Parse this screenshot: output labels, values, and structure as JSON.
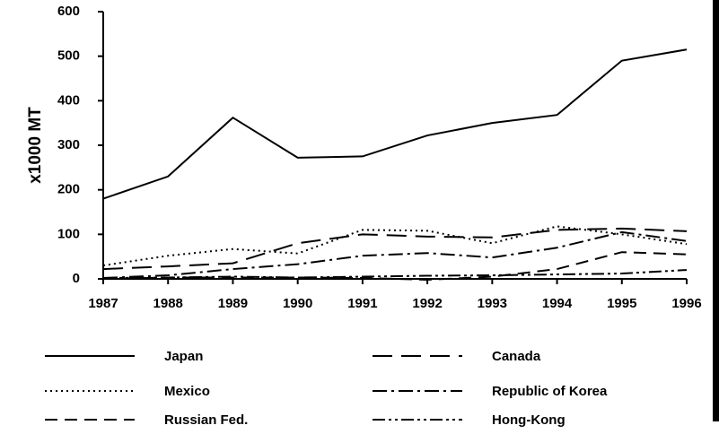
{
  "chart_data": {
    "type": "line",
    "y_label": "x1000 MT",
    "categories": [
      "1987",
      "1988",
      "1989",
      "1990",
      "1991",
      "1992",
      "1993",
      "1994",
      "1995",
      "1996"
    ],
    "series": [
      {
        "name": "Japan",
        "color": "#000000",
        "line_style": "solid",
        "values": [
          180,
          230,
          362,
          272,
          275,
          322,
          350,
          368,
          490,
          515
        ]
      },
      {
        "name": "Canada",
        "color": "#000000",
        "line_style": "long-dash",
        "values": [
          22,
          28,
          35,
          80,
          100,
          95,
          93,
          110,
          113,
          107
        ]
      },
      {
        "name": "Mexico",
        "color": "#000000",
        "line_style": "dotted",
        "values": [
          30,
          52,
          67,
          57,
          110,
          108,
          80,
          118,
          100,
          78
        ]
      },
      {
        "name": "Republic of Korea",
        "color": "#000000",
        "line_style": "dash-dot",
        "values": [
          2,
          8,
          22,
          33,
          52,
          58,
          48,
          70,
          105,
          85
        ]
      },
      {
        "name": "Russian Fed.",
        "color": "#000000",
        "line_style": "dash",
        "values": [
          0,
          3,
          3,
          3,
          2,
          -2,
          5,
          22,
          60,
          55
        ]
      },
      {
        "name": "Hong-Kong",
        "color": "#000000",
        "line_style": "dash-dot-dot",
        "values": [
          2,
          3,
          5,
          3,
          5,
          7,
          8,
          10,
          12,
          20
        ]
      }
    ],
    "ylim": [
      0,
      600
    ],
    "yticks": [
      0,
      100,
      200,
      300,
      400,
      500,
      600
    ],
    "grid": false
  }
}
